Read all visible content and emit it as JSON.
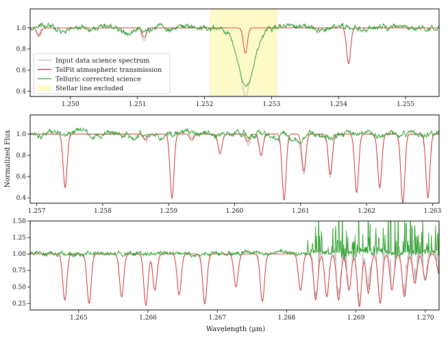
{
  "figure": {
    "ylabel": "Normalized Flux",
    "xlabel": "Wavelength (μm)"
  },
  "legend": {
    "placement": "lower-left of top panel",
    "items": [
      {
        "label": "Input data science spectrum",
        "color": "#b9b9b9",
        "kind": "line"
      },
      {
        "label": "TelFit atmospheric transmission",
        "color": "#d62728",
        "kind": "line"
      },
      {
        "label": "Telluric corrected science",
        "color": "#2ca02c",
        "kind": "line"
      },
      {
        "label": "Stellar line excluded",
        "color": "#fbfac8",
        "kind": "patch"
      }
    ]
  },
  "colors": {
    "input": "#b9b9b9",
    "model": "#d62728",
    "corrected": "#2ca02c",
    "span": "#fbfac8"
  },
  "chart_data": [
    {
      "type": "line",
      "panel": 1,
      "xlim": [
        1.2494,
        1.2555
      ],
      "ylim": [
        0.35,
        1.18
      ],
      "xticks": [
        1.25,
        1.251,
        1.252,
        1.253,
        1.254,
        1.255
      ],
      "xtick_labels": [
        "1.250",
        "1.251",
        "1.252",
        "1.253",
        "1.254",
        "1.255"
      ],
      "yticks": [
        0.4,
        0.6,
        0.8,
        1.0
      ],
      "ytick_labels": [
        "0.4",
        "0.6",
        "0.8",
        "1.0"
      ],
      "excluded_span": [
        1.25208,
        1.25309
      ],
      "telluric_lines": [
        {
          "center": 1.24953,
          "depth": 0.08,
          "width": 3e-05
        },
        {
          "center": 1.2511,
          "depth": 0.09,
          "width": 3e-05
        },
        {
          "center": 1.25261,
          "depth": 0.24,
          "width": 3e-05
        },
        {
          "center": 1.25415,
          "depth": 0.34,
          "width": 3e-05
        }
      ],
      "stellar_line": {
        "center": 1.25262,
        "depth": 0.55,
        "width": 0.00012
      },
      "series": [
        "Input data science spectrum",
        "TelFit atmospheric transmission",
        "Telluric corrected science"
      ]
    },
    {
      "type": "line",
      "panel": 2,
      "xlim": [
        1.2569,
        1.2631
      ],
      "ylim": [
        0.35,
        1.18
      ],
      "xticks": [
        1.257,
        1.258,
        1.259,
        1.26,
        1.261,
        1.262,
        1.263
      ],
      "xtick_labels": [
        "1.257",
        "1.258",
        "1.259",
        "1.260",
        "1.261",
        "1.262",
        "1.263"
      ],
      "yticks": [
        0.4,
        0.6,
        0.8,
        1.0
      ],
      "ytick_labels": [
        "0.4",
        "0.6",
        "0.8",
        "1.0"
      ],
      "telluric_lines": [
        {
          "center": 1.25743,
          "depth": 0.5,
          "width": 3e-05
        },
        {
          "center": 1.25865,
          "depth": 0.05,
          "width": 3e-05
        },
        {
          "center": 1.25905,
          "depth": 0.6,
          "width": 3e-05
        },
        {
          "center": 1.25935,
          "depth": 0.06,
          "width": 3e-05
        },
        {
          "center": 1.25978,
          "depth": 0.18,
          "width": 3e-05
        },
        {
          "center": 1.2602,
          "depth": 0.07,
          "width": 3e-05
        },
        {
          "center": 1.2604,
          "depth": 0.2,
          "width": 3e-05
        },
        {
          "center": 1.26075,
          "depth": 0.62,
          "width": 3e-05
        },
        {
          "center": 1.26105,
          "depth": 0.35,
          "width": 3e-05
        },
        {
          "center": 1.26145,
          "depth": 0.38,
          "width": 3e-05
        },
        {
          "center": 1.26185,
          "depth": 0.55,
          "width": 3e-05
        },
        {
          "center": 1.2622,
          "depth": 0.5,
          "width": 3e-05
        },
        {
          "center": 1.26255,
          "depth": 0.65,
          "width": 3e-05
        },
        {
          "center": 1.26293,
          "depth": 0.6,
          "width": 3e-05
        }
      ],
      "series": [
        "Input data science spectrum",
        "TelFit atmospheric transmission",
        "Telluric corrected science"
      ]
    },
    {
      "type": "line",
      "panel": 3,
      "xlim": [
        1.2643,
        1.2702
      ],
      "ylim": [
        0.15,
        1.5
      ],
      "xticks": [
        1.265,
        1.266,
        1.267,
        1.268,
        1.269,
        1.27
      ],
      "xtick_labels": [
        "1.265",
        "1.266",
        "1.267",
        "1.268",
        "1.269",
        "1.270"
      ],
      "yticks": [
        0.25,
        0.5,
        0.75,
        1.0,
        1.25,
        1.5
      ],
      "ytick_labels": [
        "0.25",
        "0.50",
        "0.75",
        "1.00",
        "1.25",
        "1.50"
      ],
      "telluric_lines": [
        {
          "center": 1.2648,
          "depth": 0.7,
          "width": 3e-05
        },
        {
          "center": 1.26515,
          "depth": 0.75,
          "width": 3e-05
        },
        {
          "center": 1.26562,
          "depth": 0.65,
          "width": 3e-05
        },
        {
          "center": 1.26597,
          "depth": 0.78,
          "width": 3e-05
        },
        {
          "center": 1.2661,
          "depth": 0.55,
          "width": 3e-05
        },
        {
          "center": 1.26645,
          "depth": 0.62,
          "width": 3e-05
        },
        {
          "center": 1.26682,
          "depth": 0.76,
          "width": 3e-05
        },
        {
          "center": 1.26727,
          "depth": 0.5,
          "width": 3e-05
        },
        {
          "center": 1.26765,
          "depth": 0.72,
          "width": 3e-05
        },
        {
          "center": 1.2682,
          "depth": 0.55,
          "width": 3e-05
        },
        {
          "center": 1.26842,
          "depth": 0.7,
          "width": 3e-05
        },
        {
          "center": 1.26858,
          "depth": 0.65,
          "width": 3e-05
        },
        {
          "center": 1.26875,
          "depth": 0.7,
          "width": 3e-05
        },
        {
          "center": 1.2689,
          "depth": 0.55,
          "width": 3e-05
        },
        {
          "center": 1.26905,
          "depth": 0.8,
          "width": 3e-05
        },
        {
          "center": 1.26918,
          "depth": 0.6,
          "width": 3e-05
        },
        {
          "center": 1.26935,
          "depth": 0.75,
          "width": 3e-05
        },
        {
          "center": 1.26952,
          "depth": 0.55,
          "width": 3e-05
        },
        {
          "center": 1.2697,
          "depth": 0.65,
          "width": 3e-05
        },
        {
          "center": 1.26985,
          "depth": 0.45,
          "width": 3e-05
        },
        {
          "center": 1.27,
          "depth": 0.4,
          "width": 3e-05
        },
        {
          "center": 1.2702,
          "depth": 0.3,
          "width": 3e-05
        }
      ],
      "series": [
        "Input data science spectrum",
        "TelFit atmospheric transmission",
        "Telluric corrected science"
      ]
    }
  ]
}
